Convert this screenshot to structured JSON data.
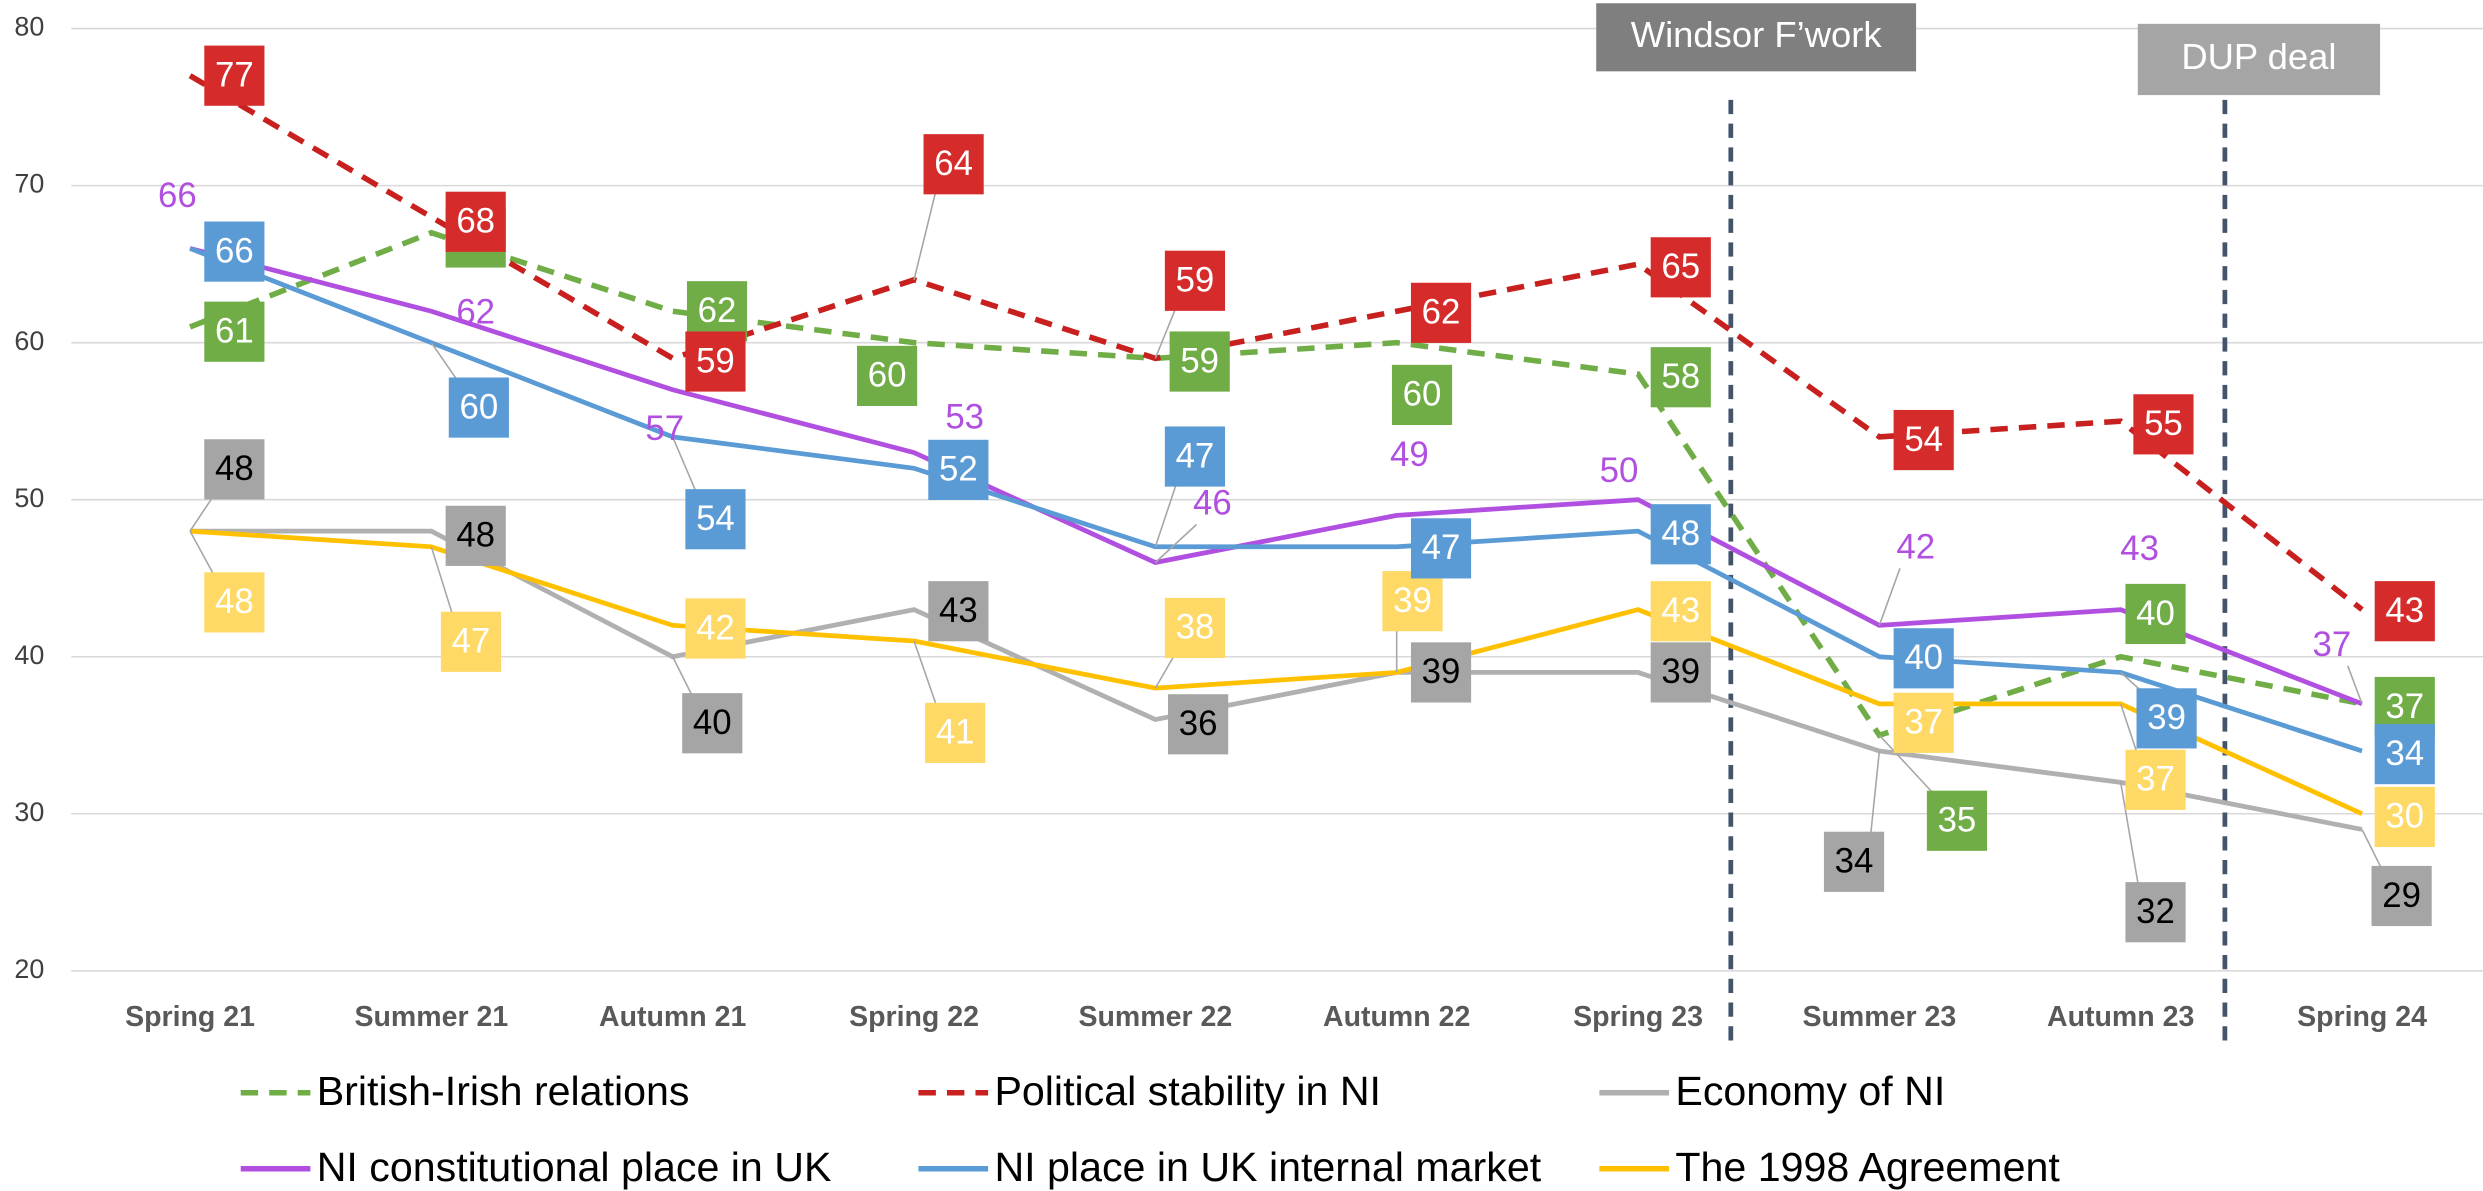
{
  "chart_data": {
    "type": "line",
    "categories": [
      "Spring 21",
      "Summer 21",
      "Autumn 21",
      "Spring 22",
      "Summer 22",
      "Autumn 22",
      "Spring 23",
      "Summer 23",
      "Autumn 23",
      "Spring 24"
    ],
    "series": [
      {
        "name": "British-Irish relations",
        "color": "#70ad47",
        "dashed": true,
        "label_box": "#70ad47",
        "values": [
          61,
          67,
          62,
          60,
          59,
          60,
          58,
          35,
          40,
          37
        ]
      },
      {
        "name": "Political stability in NI",
        "color": "#c8201e",
        "dashed": true,
        "label_box": "#d62b2b",
        "values": [
          77,
          68,
          59,
          64,
          59,
          62,
          65,
          54,
          55,
          43
        ]
      },
      {
        "name": "Economy of NI",
        "color": "#b0b0b0",
        "dashed": false,
        "label_box": "#a5a5a5",
        "values": [
          48,
          48,
          40,
          43,
          36,
          39,
          39,
          34,
          32,
          29
        ]
      },
      {
        "name": "NI constitutional place in UK",
        "color": "#b04fe0",
        "dashed": false,
        "values": [
          66,
          62,
          57,
          53,
          46,
          49,
          50,
          42,
          43,
          37
        ]
      },
      {
        "name": "NI place in  UK internal market",
        "color": "#5b9bd5",
        "dashed": false,
        "label_box": "#5b9bd5",
        "values": [
          66,
          60,
          54,
          52,
          47,
          47,
          48,
          40,
          39,
          34
        ]
      },
      {
        "name": "The 1998 Agreement",
        "color": "#ffc000",
        "dashed": false,
        "label_box": "#ffd966",
        "values": [
          48,
          47,
          42,
          41,
          38,
          39,
          43,
          37,
          37,
          30
        ]
      }
    ],
    "annotations": [
      {
        "text": "Windsor F’work"
      },
      {
        "text": "DUP deal"
      }
    ],
    "ylim": [
      20,
      80
    ],
    "yticks": [
      20,
      30,
      40,
      50,
      60,
      70,
      80
    ],
    "grid": true
  }
}
